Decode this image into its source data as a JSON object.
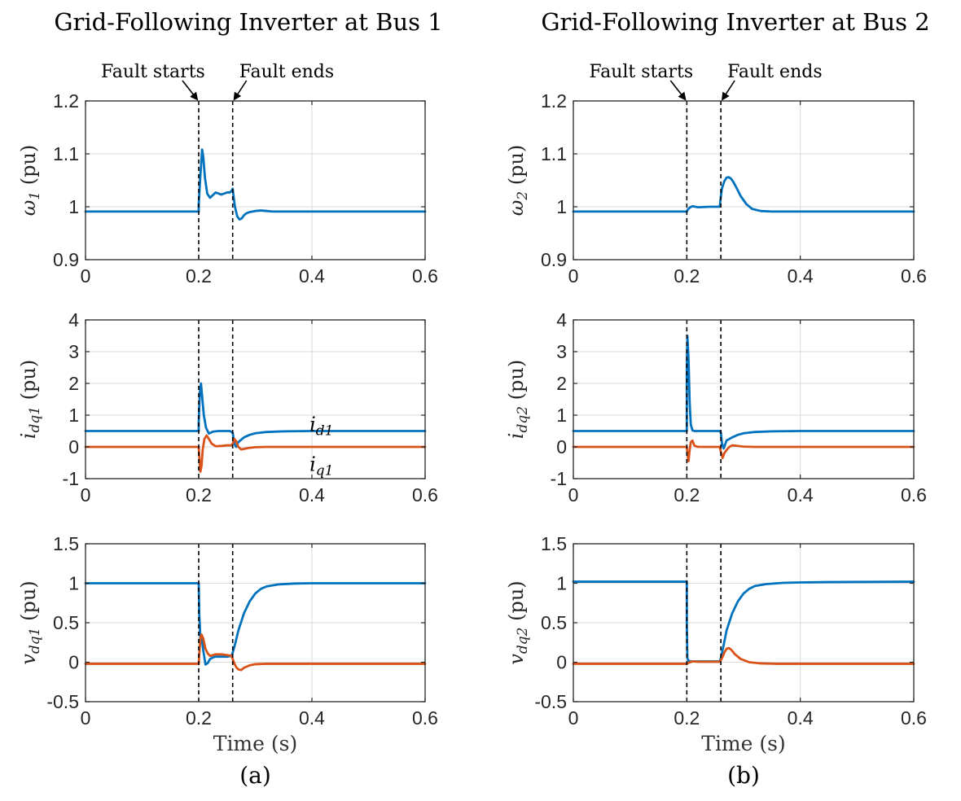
{
  "colors": {
    "series1": "#0072BD",
    "series2": "#D95319"
  },
  "annotations": {
    "fault_starts": "Fault starts",
    "fault_ends": "Fault ends"
  },
  "chart_data": [
    {
      "type": "line",
      "panel": "a-1",
      "title": "Grid-Following Inverter at Bus 1",
      "ylabel": {
        "base": "ω",
        "sub": "1",
        "unit": "(pu)"
      },
      "xlim": [
        0,
        0.6
      ],
      "ylim": [
        0.9,
        1.2
      ],
      "xticks": [
        0,
        0.2,
        0.4,
        0.6
      ],
      "xtick_labels": [
        "0",
        "0.2",
        "0.4",
        "0.6"
      ],
      "yticks": [
        0.9,
        1,
        1.1,
        1.2
      ],
      "ytick_labels": [
        "0.9",
        "1",
        "1.1",
        "1.2"
      ],
      "grid": true,
      "vlines": [
        0.2,
        0.26
      ],
      "series": [
        {
          "x": [
            0,
            0.2,
            0.2,
            0.203,
            0.206,
            0.208,
            0.211,
            0.215,
            0.22,
            0.225,
            0.23,
            0.235,
            0.24,
            0.245,
            0.25,
            0.255,
            0.258,
            0.26,
            0.261,
            0.264,
            0.268,
            0.272,
            0.276,
            0.28,
            0.285,
            0.29,
            0.295,
            0.3,
            0.31,
            0.32,
            0.33,
            0.35,
            0.6
          ],
          "y": [
            0.991,
            0.991,
            1.005,
            1.06,
            1.108,
            1.095,
            1.055,
            1.025,
            1.017,
            1.022,
            1.027,
            1.025,
            1.023,
            1.025,
            1.027,
            1.027,
            1.03,
            1.034,
            1.025,
            1.0,
            0.982,
            0.976,
            0.978,
            0.984,
            0.988,
            0.99,
            0.991,
            0.992,
            0.993,
            0.992,
            0.991,
            0.991,
            0.991
          ]
        }
      ]
    },
    {
      "type": "line",
      "panel": "a-2",
      "ylabel": {
        "base": "i",
        "sub": "dq1",
        "unit": "(pu)"
      },
      "xlim": [
        0,
        0.6
      ],
      "ylim": [
        -1,
        4
      ],
      "xticks": [
        0,
        0.2,
        0.4,
        0.6
      ],
      "xtick_labels": [
        "0",
        "0.2",
        "0.4",
        "0.6"
      ],
      "yticks": [
        -1,
        0,
        1,
        2,
        3,
        4
      ],
      "ytick_labels": [
        "-1",
        "0",
        "1",
        "2",
        "3",
        "4"
      ],
      "grid": true,
      "vlines": [
        0.2,
        0.26
      ],
      "series": [
        {
          "name": "i_d1",
          "label_base": "i",
          "label_sub": "d1",
          "label_at": [
            0.417,
            0.7
          ],
          "x": [
            0,
            0.2,
            0.2,
            0.202,
            0.204,
            0.206,
            0.209,
            0.213,
            0.218,
            0.225,
            0.235,
            0.245,
            0.255,
            0.26,
            0.263,
            0.266,
            0.27,
            0.28,
            0.29,
            0.3,
            0.32,
            0.35,
            0.4,
            0.6
          ],
          "y": [
            0.5,
            0.5,
            0.8,
            1.7,
            2.0,
            1.6,
            1.0,
            0.6,
            0.42,
            0.48,
            0.5,
            0.5,
            0.5,
            0.45,
            0.1,
            0.0,
            0.15,
            0.3,
            0.38,
            0.43,
            0.47,
            0.49,
            0.5,
            0.5
          ]
        },
        {
          "name": "i_q1",
          "label_base": "i",
          "label_sub": "q1",
          "label_at": [
            0.417,
            -0.55
          ],
          "x": [
            0,
            0.2,
            0.201,
            0.203,
            0.205,
            0.207,
            0.21,
            0.214,
            0.218,
            0.223,
            0.23,
            0.24,
            0.25,
            0.258,
            0.26,
            0.263,
            0.266,
            0.27,
            0.275,
            0.28,
            0.29,
            0.3,
            0.32,
            0.6
          ],
          "y": [
            0,
            0,
            -0.3,
            -0.78,
            -0.6,
            -0.1,
            0.25,
            0.36,
            0.25,
            0.1,
            0.02,
            0.03,
            0.05,
            0.05,
            0.1,
            0.25,
            0.18,
            0.0,
            -0.08,
            -0.06,
            -0.03,
            -0.01,
            0,
            0
          ]
        }
      ]
    },
    {
      "type": "line",
      "panel": "a-3",
      "ylabel": {
        "base": "v",
        "sub": "dq1",
        "unit": "(pu)"
      },
      "xlabel": "Time (s)",
      "caption": "(a)",
      "xlim": [
        0,
        0.6
      ],
      "ylim": [
        -0.5,
        1.5
      ],
      "xticks": [
        0,
        0.2,
        0.4,
        0.6
      ],
      "xtick_labels": [
        "0",
        "0.2",
        "0.4",
        "0.6"
      ],
      "yticks": [
        -0.5,
        0,
        0.5,
        1,
        1.5
      ],
      "ytick_labels": [
        "-0.5",
        "0",
        "0.5",
        "1",
        "1.5"
      ],
      "grid": true,
      "vlines": [
        0.2,
        0.26
      ],
      "series": [
        {
          "x": [
            0,
            0.2,
            0.201,
            0.203,
            0.205,
            0.208,
            0.212,
            0.216,
            0.22,
            0.225,
            0.23,
            0.24,
            0.25,
            0.258,
            0.26,
            0.265,
            0.27,
            0.28,
            0.29,
            0.3,
            0.31,
            0.32,
            0.34,
            0.37,
            0.4,
            0.45,
            0.6
          ],
          "y": [
            1.0,
            1.0,
            0.6,
            0.3,
            0.32,
            0.15,
            -0.03,
            -0.01,
            0.04,
            0.06,
            0.07,
            0.07,
            0.07,
            0.08,
            0.12,
            0.25,
            0.4,
            0.62,
            0.77,
            0.87,
            0.93,
            0.96,
            0.985,
            0.997,
            1.0,
            1.0,
            1.0
          ]
        },
        {
          "x": [
            0,
            0.2,
            0.201,
            0.203,
            0.205,
            0.208,
            0.212,
            0.216,
            0.22,
            0.23,
            0.24,
            0.25,
            0.258,
            0.262,
            0.266,
            0.27,
            0.275,
            0.28,
            0.29,
            0.3,
            0.32,
            0.6
          ],
          "y": [
            -0.02,
            -0.02,
            0.1,
            0.3,
            0.35,
            0.3,
            0.17,
            0.11,
            0.08,
            0.1,
            0.1,
            0.09,
            0.08,
            0.0,
            -0.06,
            -0.09,
            -0.1,
            -0.07,
            -0.04,
            -0.025,
            -0.02,
            -0.02
          ]
        }
      ]
    },
    {
      "type": "line",
      "panel": "b-1",
      "title": "Grid-Following Inverter at Bus 2",
      "ylabel": {
        "base": "ω",
        "sub": "2",
        "unit": "(pu)"
      },
      "xlim": [
        0,
        0.6
      ],
      "ylim": [
        0.9,
        1.2
      ],
      "xticks": [
        0,
        0.2,
        0.4,
        0.6
      ],
      "xtick_labels": [
        "0",
        "0.2",
        "0.4",
        "0.6"
      ],
      "yticks": [
        0.9,
        1,
        1.1,
        1.2
      ],
      "ytick_labels": [
        "0.9",
        "1",
        "1.1",
        "1.2"
      ],
      "grid": true,
      "vlines": [
        0.2,
        0.26
      ],
      "series": [
        {
          "x": [
            0,
            0.2,
            0.202,
            0.206,
            0.21,
            0.215,
            0.22,
            0.24,
            0.258,
            0.26,
            0.262,
            0.266,
            0.27,
            0.274,
            0.278,
            0.282,
            0.288,
            0.295,
            0.305,
            0.315,
            0.33,
            0.35,
            0.4,
            0.6
          ],
          "y": [
            0.991,
            0.991,
            0.995,
            0.999,
            1.001,
            1.0,
            0.999,
            1.0,
            1.0,
            1.02,
            1.035,
            1.048,
            1.055,
            1.056,
            1.053,
            1.047,
            1.035,
            1.02,
            1.005,
            0.996,
            0.992,
            0.991,
            0.991,
            0.991
          ]
        }
      ]
    },
    {
      "type": "line",
      "panel": "b-2",
      "ylabel": {
        "base": "i",
        "sub": "dq2",
        "unit": "(pu)"
      },
      "xlim": [
        0,
        0.6
      ],
      "ylim": [
        -1,
        4
      ],
      "xticks": [
        0,
        0.2,
        0.4,
        0.6
      ],
      "xtick_labels": [
        "0",
        "0.2",
        "0.4",
        "0.6"
      ],
      "yticks": [
        -1,
        0,
        1,
        2,
        3,
        4
      ],
      "ytick_labels": [
        "-1",
        "0",
        "1",
        "2",
        "3",
        "4"
      ],
      "grid": true,
      "vlines": [
        0.2,
        0.26
      ],
      "series": [
        {
          "x": [
            0,
            0.2,
            0.2,
            0.201,
            0.203,
            0.205,
            0.207,
            0.21,
            0.214,
            0.22,
            0.24,
            0.258,
            0.26,
            0.262,
            0.265,
            0.27,
            0.28,
            0.29,
            0.3,
            0.32,
            0.35,
            0.4,
            0.6
          ],
          "y": [
            0.5,
            0.5,
            2.5,
            3.5,
            2.8,
            1.4,
            0.7,
            0.52,
            0.5,
            0.5,
            0.5,
            0.5,
            0.45,
            0.1,
            -0.05,
            0.2,
            0.3,
            0.38,
            0.43,
            0.47,
            0.49,
            0.5,
            0.5
          ]
        },
        {
          "x": [
            0,
            0.2,
            0.201,
            0.203,
            0.205,
            0.207,
            0.21,
            0.213,
            0.216,
            0.22,
            0.24,
            0.258,
            0.26,
            0.263,
            0.266,
            0.27,
            0.275,
            0.28,
            0.29,
            0.3,
            0.32,
            0.6
          ],
          "y": [
            0,
            0,
            -0.2,
            -0.45,
            -0.1,
            0.15,
            0.2,
            0.05,
            0.02,
            0.0,
            0.0,
            0.0,
            -0.15,
            -0.35,
            -0.2,
            -0.1,
            0.0,
            0.05,
            0.03,
            0.01,
            0,
            0
          ]
        }
      ]
    },
    {
      "type": "line",
      "panel": "b-3",
      "ylabel": {
        "base": "v",
        "sub": "dq2",
        "unit": "(pu)"
      },
      "xlabel": "Time (s)",
      "caption": "(b)",
      "xlim": [
        0,
        0.6
      ],
      "ylim": [
        -0.5,
        1.5
      ],
      "xticks": [
        0,
        0.2,
        0.4,
        0.6
      ],
      "xtick_labels": [
        "0",
        "0.2",
        "0.4",
        "0.6"
      ],
      "yticks": [
        -0.5,
        0,
        0.5,
        1,
        1.5
      ],
      "ytick_labels": [
        "-0.5",
        "0",
        "0.5",
        "1",
        "1.5"
      ],
      "grid": true,
      "vlines": [
        0.2,
        0.26
      ],
      "series": [
        {
          "x": [
            0,
            0.2,
            0.2,
            0.201,
            0.203,
            0.206,
            0.21,
            0.22,
            0.24,
            0.258,
            0.26,
            0.265,
            0.27,
            0.28,
            0.29,
            0.3,
            0.31,
            0.32,
            0.34,
            0.37,
            0.4,
            0.45,
            0.6
          ],
          "y": [
            1.02,
            1.02,
            0.5,
            0.05,
            0.02,
            0.01,
            0.01,
            0.01,
            0.01,
            0.01,
            0.05,
            0.22,
            0.4,
            0.62,
            0.77,
            0.87,
            0.93,
            0.965,
            0.99,
            1.005,
            1.01,
            1.015,
            1.02
          ]
        },
        {
          "x": [
            0,
            0.2,
            0.202,
            0.206,
            0.21,
            0.22,
            0.24,
            0.258,
            0.262,
            0.266,
            0.27,
            0.274,
            0.278,
            0.285,
            0.295,
            0.31,
            0.33,
            0.36,
            0.6
          ],
          "y": [
            -0.02,
            -0.02,
            -0.01,
            0.0,
            0.01,
            0.005,
            0.005,
            0.005,
            0.05,
            0.12,
            0.17,
            0.18,
            0.16,
            0.1,
            0.04,
            0.0,
            -0.015,
            -0.02,
            -0.02
          ]
        }
      ]
    }
  ]
}
